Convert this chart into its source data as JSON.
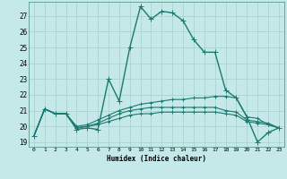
{
  "xlabel": "Humidex (Indice chaleur)",
  "bg_color": "#c5e8e8",
  "grid_color": "#b0d8d8",
  "line_color": "#1a7a6e",
  "xlim": [
    -0.5,
    23.5
  ],
  "ylim": [
    18.7,
    27.9
  ],
  "xticks": [
    0,
    1,
    2,
    3,
    4,
    5,
    6,
    7,
    8,
    9,
    10,
    11,
    12,
    13,
    14,
    15,
    16,
    17,
    18,
    19,
    20,
    21,
    22,
    23
  ],
  "yticks": [
    19,
    20,
    21,
    22,
    23,
    24,
    25,
    26,
    27
  ],
  "series": [
    [
      19.4,
      21.1,
      20.8,
      20.8,
      19.8,
      19.9,
      19.8,
      23.0,
      21.6,
      25.0,
      27.6,
      26.8,
      27.3,
      27.2,
      26.7,
      25.5,
      24.7,
      24.7,
      22.3,
      21.8,
      20.6,
      19.0,
      19.6,
      19.9
    ],
    [
      19.4,
      21.1,
      20.8,
      20.8,
      20.0,
      20.1,
      20.4,
      20.7,
      21.0,
      21.2,
      21.4,
      21.5,
      21.6,
      21.7,
      21.7,
      21.8,
      21.8,
      21.9,
      21.9,
      21.8,
      20.6,
      20.5,
      20.1,
      19.9
    ],
    [
      19.4,
      21.1,
      20.8,
      20.8,
      19.9,
      20.0,
      20.2,
      20.5,
      20.8,
      21.0,
      21.1,
      21.2,
      21.2,
      21.2,
      21.2,
      21.2,
      21.2,
      21.2,
      21.0,
      20.9,
      20.4,
      20.3,
      20.2,
      19.9
    ],
    [
      19.4,
      21.1,
      20.8,
      20.8,
      19.9,
      20.0,
      20.1,
      20.3,
      20.5,
      20.7,
      20.8,
      20.8,
      20.9,
      20.9,
      20.9,
      20.9,
      20.9,
      20.9,
      20.8,
      20.7,
      20.3,
      20.2,
      20.1,
      19.9
    ]
  ]
}
